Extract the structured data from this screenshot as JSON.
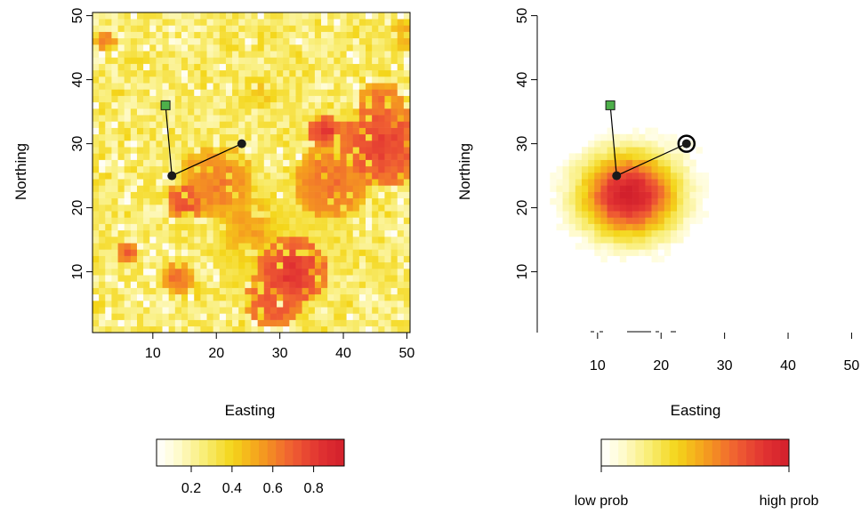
{
  "chart_data": [
    {
      "type": "heatmap",
      "xlabel": "Easting",
      "ylabel": "Northing",
      "xlim": [
        0.5,
        50.5
      ],
      "ylim": [
        0.5,
        50.5
      ],
      "xticks": [
        10,
        20,
        30,
        40,
        50
      ],
      "yticks": [
        10,
        20,
        30,
        40,
        50
      ],
      "colorbar": {
        "ticks": [
          0.2,
          0.4,
          0.6,
          0.8
        ],
        "range": [
          0.03,
          0.95
        ]
      },
      "path": [
        {
          "x": 12,
          "y": 36
        },
        {
          "x": 13,
          "y": 25
        },
        {
          "x": 24,
          "y": 30
        }
      ],
      "start_marker_color": "#4daf4a",
      "node_color": "#1a1a1a",
      "hotspots": [
        {
          "x": 32,
          "y": 10,
          "r": 5.5,
          "value": 0.9
        },
        {
          "x": 29,
          "y": 6,
          "r": 5,
          "value": 0.82
        },
        {
          "x": 38,
          "y": 24,
          "r": 6,
          "value": 0.72
        },
        {
          "x": 46,
          "y": 30,
          "r": 7,
          "value": 0.85
        },
        {
          "x": 46,
          "y": 36,
          "r": 4,
          "value": 0.72
        },
        {
          "x": 20,
          "y": 24,
          "r": 6,
          "value": 0.68
        },
        {
          "x": 15,
          "y": 21,
          "r": 3,
          "value": 0.82
        },
        {
          "x": 25,
          "y": 17,
          "r": 4.5,
          "value": 0.6
        },
        {
          "x": 37,
          "y": 32,
          "r": 2.5,
          "value": 0.9
        },
        {
          "x": 27,
          "y": 14,
          "r": 8,
          "value": 0.45
        },
        {
          "x": 34,
          "y": 18,
          "r": 10,
          "value": 0.38
        },
        {
          "x": 16,
          "y": 38,
          "r": 4,
          "value": 0.3
        },
        {
          "x": 6,
          "y": 13,
          "r": 1.5,
          "value": 0.8
        },
        {
          "x": 2.5,
          "y": 46,
          "r": 1.8,
          "value": 0.7
        },
        {
          "x": 14,
          "y": 9,
          "r": 2.5,
          "value": 0.72
        },
        {
          "x": 27,
          "y": 38,
          "r": 2.5,
          "value": 0.5
        },
        {
          "x": 50,
          "y": 47,
          "r": 3,
          "value": 0.55
        }
      ]
    },
    {
      "type": "heatmap",
      "xlabel": "Easting",
      "ylabel": "Northing",
      "xlim": [
        0.5,
        50.5
      ],
      "ylim": [
        0.5,
        50.5
      ],
      "xticks": [
        10,
        20,
        30,
        40,
        50
      ],
      "yticks": [
        10,
        20,
        30,
        40,
        50
      ],
      "colorbar": {
        "low_label": "low prob",
        "high_label": "high prob"
      },
      "path": [
        {
          "x": 12,
          "y": 36
        },
        {
          "x": 13,
          "y": 25
        },
        {
          "x": 24,
          "y": 30
        }
      ],
      "current_location": {
        "x": 24,
        "y": 30
      },
      "start_marker_color": "#4daf4a",
      "node_color": "#1a1a1a",
      "probability_center": {
        "x": 15,
        "y": 22
      },
      "probability_spread": 5.5
    }
  ]
}
